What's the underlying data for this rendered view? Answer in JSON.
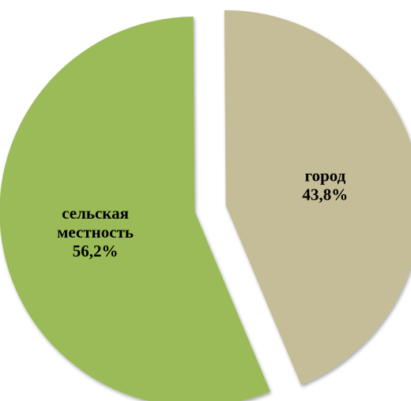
{
  "chart_data": {
    "type": "pie",
    "exploded": true,
    "slices": [
      {
        "label_lines": [
          "город"
        ],
        "value": 43.8,
        "value_label": "43,8%",
        "color": "#C4BD97"
      },
      {
        "label_lines": [
          "сельская",
          "местность"
        ],
        "value": 56.2,
        "value_label": "56,2%",
        "color": "#9BBB59"
      }
    ]
  }
}
